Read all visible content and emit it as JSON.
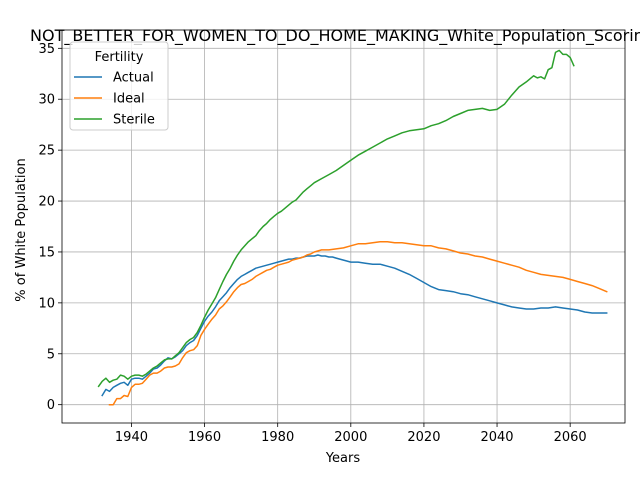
{
  "chart_data": {
    "type": "line",
    "title": "NOT_BETTER_FOR_WOMEN_TO_DO_HOME_MAKING_White_Population_Scoring",
    "xlabel": "Years",
    "ylabel": "% of White Population",
    "xlim": [
      1921,
      2075
    ],
    "ylim": [
      -1.8,
      36.8
    ],
    "xticks": [
      1940,
      1960,
      1980,
      2000,
      2020,
      2040,
      2060
    ],
    "yticks": [
      0,
      5,
      10,
      15,
      20,
      25,
      30,
      35
    ],
    "grid": true,
    "legend": {
      "title": "Fertility",
      "position": "top-left"
    },
    "series": [
      {
        "name": "Actual",
        "color": "#1f77b4",
        "points": [
          [
            1932,
            0.9
          ],
          [
            1933,
            1.5
          ],
          [
            1934,
            1.3
          ],
          [
            1935,
            1.7
          ],
          [
            1936,
            1.9
          ],
          [
            1937,
            2.1
          ],
          [
            1938,
            2.2
          ],
          [
            1939,
            1.9
          ],
          [
            1940,
            2.5
          ],
          [
            1941,
            2.6
          ],
          [
            1942,
            2.6
          ],
          [
            1943,
            2.5
          ],
          [
            1944,
            2.8
          ],
          [
            1945,
            3.1
          ],
          [
            1946,
            3.5
          ],
          [
            1947,
            3.6
          ],
          [
            1948,
            3.9
          ],
          [
            1949,
            4.3
          ],
          [
            1950,
            4.6
          ],
          [
            1951,
            4.5
          ],
          [
            1952,
            4.7
          ],
          [
            1953,
            5.0
          ],
          [
            1954,
            5.3
          ],
          [
            1955,
            5.8
          ],
          [
            1956,
            6.1
          ],
          [
            1957,
            6.3
          ],
          [
            1958,
            6.8
          ],
          [
            1959,
            7.5
          ],
          [
            1960,
            8.2
          ],
          [
            1961,
            8.7
          ],
          [
            1962,
            9.1
          ],
          [
            1963,
            9.6
          ],
          [
            1964,
            10.2
          ],
          [
            1965,
            10.6
          ],
          [
            1966,
            11.0
          ],
          [
            1967,
            11.5
          ],
          [
            1968,
            11.9
          ],
          [
            1969,
            12.3
          ],
          [
            1970,
            12.6
          ],
          [
            1971,
            12.8
          ],
          [
            1972,
            13.0
          ],
          [
            1973,
            13.2
          ],
          [
            1974,
            13.4
          ],
          [
            1975,
            13.5
          ],
          [
            1976,
            13.6
          ],
          [
            1977,
            13.7
          ],
          [
            1978,
            13.8
          ],
          [
            1979,
            13.9
          ],
          [
            1980,
            14.0
          ],
          [
            1981,
            14.1
          ],
          [
            1982,
            14.2
          ],
          [
            1983,
            14.3
          ],
          [
            1984,
            14.3
          ],
          [
            1985,
            14.4
          ],
          [
            1986,
            14.4
          ],
          [
            1987,
            14.5
          ],
          [
            1988,
            14.6
          ],
          [
            1989,
            14.6
          ],
          [
            1990,
            14.6
          ],
          [
            1991,
            14.7
          ],
          [
            1992,
            14.6
          ],
          [
            1993,
            14.6
          ],
          [
            1994,
            14.5
          ],
          [
            1995,
            14.5
          ],
          [
            1996,
            14.4
          ],
          [
            1997,
            14.3
          ],
          [
            1998,
            14.2
          ],
          [
            1999,
            14.1
          ],
          [
            2000,
            14.0
          ],
          [
            2002,
            14.0
          ],
          [
            2004,
            13.9
          ],
          [
            2006,
            13.8
          ],
          [
            2008,
            13.8
          ],
          [
            2010,
            13.6
          ],
          [
            2012,
            13.4
          ],
          [
            2014,
            13.1
          ],
          [
            2016,
            12.8
          ],
          [
            2018,
            12.4
          ],
          [
            2020,
            12.0
          ],
          [
            2022,
            11.6
          ],
          [
            2024,
            11.3
          ],
          [
            2026,
            11.2
          ],
          [
            2028,
            11.1
          ],
          [
            2030,
            10.9
          ],
          [
            2032,
            10.8
          ],
          [
            2034,
            10.6
          ],
          [
            2036,
            10.4
          ],
          [
            2038,
            10.2
          ],
          [
            2040,
            10.0
          ],
          [
            2042,
            9.8
          ],
          [
            2044,
            9.6
          ],
          [
            2046,
            9.5
          ],
          [
            2048,
            9.4
          ],
          [
            2050,
            9.4
          ],
          [
            2052,
            9.5
          ],
          [
            2054,
            9.5
          ],
          [
            2056,
            9.6
          ],
          [
            2058,
            9.5
          ],
          [
            2060,
            9.4
          ],
          [
            2062,
            9.3
          ],
          [
            2064,
            9.1
          ],
          [
            2066,
            9.0
          ],
          [
            2068,
            9.0
          ],
          [
            2070,
            9.0
          ]
        ]
      },
      {
        "name": "Ideal",
        "color": "#ff7f0e",
        "points": [
          [
            1934,
            0.0
          ],
          [
            1935,
            0.0
          ],
          [
            1936,
            0.6
          ],
          [
            1937,
            0.6
          ],
          [
            1938,
            0.9
          ],
          [
            1939,
            0.8
          ],
          [
            1940,
            1.7
          ],
          [
            1941,
            2.0
          ],
          [
            1942,
            2.0
          ],
          [
            1943,
            2.1
          ],
          [
            1944,
            2.5
          ],
          [
            1945,
            2.9
          ],
          [
            1946,
            3.1
          ],
          [
            1947,
            3.1
          ],
          [
            1948,
            3.3
          ],
          [
            1949,
            3.6
          ],
          [
            1950,
            3.7
          ],
          [
            1951,
            3.7
          ],
          [
            1952,
            3.8
          ],
          [
            1953,
            4.0
          ],
          [
            1954,
            4.6
          ],
          [
            1955,
            5.1
          ],
          [
            1956,
            5.3
          ],
          [
            1957,
            5.4
          ],
          [
            1958,
            5.8
          ],
          [
            1959,
            6.8
          ],
          [
            1960,
            7.4
          ],
          [
            1961,
            7.9
          ],
          [
            1962,
            8.4
          ],
          [
            1963,
            8.8
          ],
          [
            1964,
            9.4
          ],
          [
            1965,
            9.7
          ],
          [
            1966,
            10.1
          ],
          [
            1967,
            10.6
          ],
          [
            1968,
            11.1
          ],
          [
            1969,
            11.5
          ],
          [
            1970,
            11.8
          ],
          [
            1971,
            11.9
          ],
          [
            1972,
            12.1
          ],
          [
            1973,
            12.3
          ],
          [
            1974,
            12.6
          ],
          [
            1975,
            12.8
          ],
          [
            1976,
            13.0
          ],
          [
            1977,
            13.2
          ],
          [
            1978,
            13.3
          ],
          [
            1979,
            13.5
          ],
          [
            1980,
            13.7
          ],
          [
            1981,
            13.8
          ],
          [
            1982,
            13.9
          ],
          [
            1983,
            14.0
          ],
          [
            1984,
            14.2
          ],
          [
            1985,
            14.3
          ],
          [
            1986,
            14.4
          ],
          [
            1987,
            14.5
          ],
          [
            1988,
            14.7
          ],
          [
            1989,
            14.8
          ],
          [
            1990,
            15.0
          ],
          [
            1992,
            15.2
          ],
          [
            1994,
            15.2
          ],
          [
            1996,
            15.3
          ],
          [
            1998,
            15.4
          ],
          [
            2000,
            15.6
          ],
          [
            2002,
            15.8
          ],
          [
            2004,
            15.8
          ],
          [
            2006,
            15.9
          ],
          [
            2008,
            16.0
          ],
          [
            2010,
            16.0
          ],
          [
            2012,
            15.9
          ],
          [
            2014,
            15.9
          ],
          [
            2016,
            15.8
          ],
          [
            2018,
            15.7
          ],
          [
            2020,
            15.6
          ],
          [
            2022,
            15.6
          ],
          [
            2024,
            15.4
          ],
          [
            2026,
            15.3
          ],
          [
            2028,
            15.1
          ],
          [
            2030,
            14.9
          ],
          [
            2032,
            14.8
          ],
          [
            2034,
            14.6
          ],
          [
            2036,
            14.5
          ],
          [
            2038,
            14.3
          ],
          [
            2040,
            14.1
          ],
          [
            2042,
            13.9
          ],
          [
            2044,
            13.7
          ],
          [
            2046,
            13.5
          ],
          [
            2048,
            13.2
          ],
          [
            2050,
            13.0
          ],
          [
            2052,
            12.8
          ],
          [
            2054,
            12.7
          ],
          [
            2056,
            12.6
          ],
          [
            2058,
            12.5
          ],
          [
            2060,
            12.3
          ],
          [
            2062,
            12.1
          ],
          [
            2064,
            11.9
          ],
          [
            2066,
            11.7
          ],
          [
            2068,
            11.4
          ],
          [
            2070,
            11.1
          ]
        ]
      },
      {
        "name": "Sterile",
        "color": "#2ca02c",
        "points": [
          [
            1931,
            1.8
          ],
          [
            1932,
            2.3
          ],
          [
            1933,
            2.6
          ],
          [
            1934,
            2.2
          ],
          [
            1935,
            2.4
          ],
          [
            1936,
            2.5
          ],
          [
            1937,
            2.9
          ],
          [
            1938,
            2.8
          ],
          [
            1939,
            2.5
          ],
          [
            1940,
            2.8
          ],
          [
            1941,
            2.9
          ],
          [
            1942,
            2.9
          ],
          [
            1943,
            2.8
          ],
          [
            1944,
            3.0
          ],
          [
            1945,
            3.3
          ],
          [
            1946,
            3.6
          ],
          [
            1947,
            3.8
          ],
          [
            1948,
            4.1
          ],
          [
            1949,
            4.4
          ],
          [
            1950,
            4.5
          ],
          [
            1951,
            4.5
          ],
          [
            1952,
            4.8
          ],
          [
            1953,
            5.1
          ],
          [
            1954,
            5.6
          ],
          [
            1955,
            6.1
          ],
          [
            1956,
            6.4
          ],
          [
            1957,
            6.6
          ],
          [
            1958,
            7.1
          ],
          [
            1959,
            7.8
          ],
          [
            1960,
            8.6
          ],
          [
            1961,
            9.3
          ],
          [
            1962,
            9.9
          ],
          [
            1963,
            10.5
          ],
          [
            1964,
            11.3
          ],
          [
            1965,
            12.1
          ],
          [
            1966,
            12.8
          ],
          [
            1967,
            13.4
          ],
          [
            1968,
            14.1
          ],
          [
            1969,
            14.7
          ],
          [
            1970,
            15.2
          ],
          [
            1971,
            15.6
          ],
          [
            1972,
            16.0
          ],
          [
            1973,
            16.3
          ],
          [
            1974,
            16.6
          ],
          [
            1975,
            17.1
          ],
          [
            1976,
            17.5
          ],
          [
            1977,
            17.8
          ],
          [
            1978,
            18.2
          ],
          [
            1979,
            18.5
          ],
          [
            1980,
            18.8
          ],
          [
            1981,
            19.0
          ],
          [
            1982,
            19.3
          ],
          [
            1983,
            19.6
          ],
          [
            1984,
            19.9
          ],
          [
            1985,
            20.1
          ],
          [
            1986,
            20.5
          ],
          [
            1987,
            20.9
          ],
          [
            1988,
            21.2
          ],
          [
            1989,
            21.5
          ],
          [
            1990,
            21.8
          ],
          [
            1992,
            22.2
          ],
          [
            1994,
            22.6
          ],
          [
            1996,
            23.0
          ],
          [
            1998,
            23.5
          ],
          [
            2000,
            24.0
          ],
          [
            2002,
            24.5
          ],
          [
            2004,
            24.9
          ],
          [
            2006,
            25.3
          ],
          [
            2008,
            25.7
          ],
          [
            2010,
            26.1
          ],
          [
            2012,
            26.4
          ],
          [
            2014,
            26.7
          ],
          [
            2016,
            26.9
          ],
          [
            2018,
            27.0
          ],
          [
            2020,
            27.1
          ],
          [
            2022,
            27.4
          ],
          [
            2024,
            27.6
          ],
          [
            2026,
            27.9
          ],
          [
            2028,
            28.3
          ],
          [
            2030,
            28.6
          ],
          [
            2032,
            28.9
          ],
          [
            2034,
            29.0
          ],
          [
            2036,
            29.1
          ],
          [
            2038,
            28.9
          ],
          [
            2040,
            29.0
          ],
          [
            2042,
            29.5
          ],
          [
            2044,
            30.4
          ],
          [
            2046,
            31.2
          ],
          [
            2048,
            31.7
          ],
          [
            2050,
            32.3
          ],
          [
            2051,
            32.1
          ],
          [
            2052,
            32.2
          ],
          [
            2053,
            32.0
          ],
          [
            2054,
            32.9
          ],
          [
            2055,
            33.1
          ],
          [
            2056,
            34.6
          ],
          [
            2057,
            34.8
          ],
          [
            2058,
            34.4
          ],
          [
            2059,
            34.4
          ],
          [
            2060,
            34.1
          ],
          [
            2061,
            33.3
          ]
        ]
      }
    ]
  }
}
